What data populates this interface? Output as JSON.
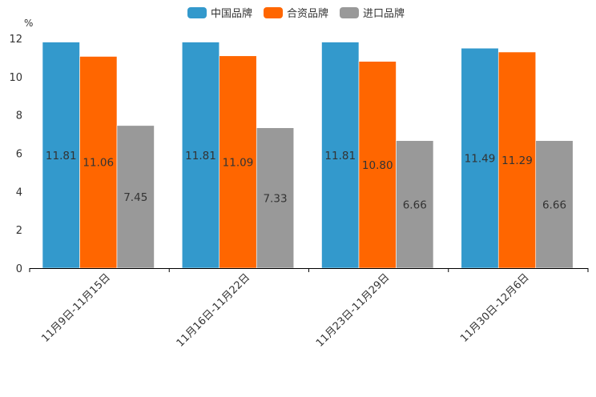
{
  "chart_data": {
    "type": "bar",
    "unit": "%",
    "categories": [
      "11月9日-11月15日",
      "11月16日-11月22日",
      "11月23日-11月29日",
      "11月30日-12月6日"
    ],
    "series": [
      {
        "name": "中国品牌",
        "color": "#3399cc",
        "values": [
          11.81,
          11.81,
          11.81,
          11.49
        ],
        "labels": [
          "11.81",
          "11.81",
          "11.81",
          "11.49"
        ]
      },
      {
        "name": "合资品牌",
        "color": "#ff6600",
        "values": [
          11.06,
          11.09,
          10.8,
          11.29
        ],
        "labels": [
          "11.06",
          "11.09",
          "10.80",
          "11.29"
        ]
      },
      {
        "name": "进口品牌",
        "color": "#999999",
        "values": [
          7.45,
          7.33,
          6.66,
          6.66
        ],
        "labels": [
          "7.45",
          "7.33",
          "6.66",
          "6.66"
        ]
      }
    ],
    "ylim": [
      0,
      12
    ],
    "yticks": [
      "0",
      "2",
      "4",
      "6",
      "8",
      "10",
      "12"
    ],
    "legend_position": "top-center",
    "grid": false
  }
}
